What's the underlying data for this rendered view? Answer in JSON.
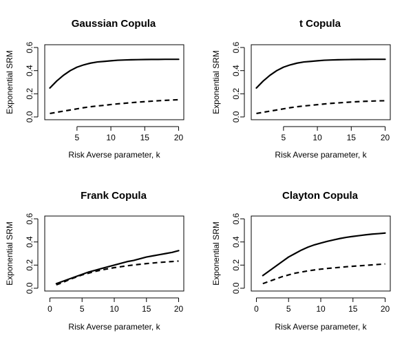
{
  "chart_data": [
    {
      "type": "line",
      "title": "Gaussian Copula",
      "xlabel": "Risk Averse parameter, k",
      "ylabel": "Exponential SRM",
      "xlim": [
        1,
        20
      ],
      "ylim": [
        0,
        0.6
      ],
      "xticks": [
        5,
        10,
        15,
        20
      ],
      "yticks": [
        0.0,
        0.2,
        0.4,
        0.6
      ],
      "ytick_labels": [
        "0.0",
        "0.2",
        "0.4",
        "0.6"
      ],
      "x": [
        1,
        2,
        3,
        4,
        5,
        6,
        7,
        8,
        9,
        10,
        11,
        12,
        13,
        14,
        15,
        16,
        17,
        18,
        19,
        20
      ],
      "series": [
        {
          "style": "solid",
          "values": [
            0.25,
            0.31,
            0.36,
            0.4,
            0.43,
            0.45,
            0.465,
            0.475,
            0.48,
            0.485,
            0.49,
            0.492,
            0.494,
            0.495,
            0.496,
            0.497,
            0.497,
            0.498,
            0.498,
            0.498
          ]
        },
        {
          "style": "dashed",
          "values": [
            0.03,
            0.04,
            0.05,
            0.06,
            0.07,
            0.08,
            0.088,
            0.095,
            0.1,
            0.107,
            0.113,
            0.118,
            0.123,
            0.128,
            0.132,
            0.136,
            0.14,
            0.143,
            0.146,
            0.149
          ]
        }
      ]
    },
    {
      "type": "line",
      "title": "t Copula",
      "xlabel": "Risk Averse parameter, k",
      "ylabel": "Exponential SRM",
      "xlim": [
        1,
        20
      ],
      "ylim": [
        0,
        0.6
      ],
      "xticks": [
        5,
        10,
        15,
        20
      ],
      "yticks": [
        0.0,
        0.2,
        0.4,
        0.6
      ],
      "ytick_labels": [
        "0.0",
        "0.2",
        "0.4",
        "0.6"
      ],
      "x": [
        1,
        2,
        3,
        4,
        5,
        6,
        7,
        8,
        9,
        10,
        11,
        12,
        13,
        14,
        15,
        16,
        17,
        18,
        19,
        20
      ],
      "series": [
        {
          "style": "solid",
          "values": [
            0.25,
            0.31,
            0.36,
            0.4,
            0.43,
            0.45,
            0.465,
            0.475,
            0.48,
            0.485,
            0.49,
            0.492,
            0.494,
            0.495,
            0.496,
            0.497,
            0.497,
            0.498,
            0.498,
            0.498
          ]
        },
        {
          "style": "dashed",
          "values": [
            0.03,
            0.04,
            0.05,
            0.06,
            0.07,
            0.08,
            0.088,
            0.095,
            0.1,
            0.106,
            0.112,
            0.117,
            0.121,
            0.125,
            0.129,
            0.132,
            0.135,
            0.137,
            0.139,
            0.14
          ]
        }
      ]
    },
    {
      "type": "line",
      "title": "Frank Copula",
      "xlabel": "Risk Averse parameter, k",
      "ylabel": "Exponential SRM",
      "xlim": [
        0,
        20
      ],
      "ylim": [
        0,
        0.6
      ],
      "xticks": [
        0,
        5,
        10,
        15,
        20
      ],
      "yticks": [
        0.0,
        0.2,
        0.4,
        0.6
      ],
      "ytick_labels": [
        "0.0",
        "0.2",
        "0.4",
        "0.6"
      ],
      "x": [
        1,
        2,
        3,
        4,
        5,
        6,
        7,
        8,
        9,
        10,
        11,
        12,
        13,
        14,
        15,
        16,
        17,
        18,
        19,
        20
      ],
      "series": [
        {
          "style": "solid",
          "values": [
            0.04,
            0.06,
            0.08,
            0.1,
            0.12,
            0.14,
            0.155,
            0.17,
            0.185,
            0.2,
            0.215,
            0.23,
            0.24,
            0.255,
            0.27,
            0.28,
            0.29,
            0.3,
            0.31,
            0.325
          ]
        },
        {
          "style": "dashed",
          "values": [
            0.03,
            0.05,
            0.075,
            0.095,
            0.115,
            0.13,
            0.145,
            0.157,
            0.168,
            0.178,
            0.186,
            0.194,
            0.201,
            0.207,
            0.213,
            0.218,
            0.223,
            0.227,
            0.231,
            0.235
          ]
        }
      ]
    },
    {
      "type": "line",
      "title": "Clayton Copula",
      "xlabel": "Risk Averse parameter, k",
      "ylabel": "Exponential SRM",
      "xlim": [
        0,
        20
      ],
      "ylim": [
        0,
        0.6
      ],
      "xticks": [
        0,
        5,
        10,
        15,
        20
      ],
      "yticks": [
        0.0,
        0.2,
        0.4,
        0.6
      ],
      "ytick_labels": [
        "0.0",
        "0.2",
        "0.4",
        "0.6"
      ],
      "x": [
        1,
        2,
        3,
        4,
        5,
        6,
        7,
        8,
        9,
        10,
        11,
        12,
        13,
        14,
        15,
        16,
        17,
        18,
        19,
        20
      ],
      "series": [
        {
          "style": "solid",
          "values": [
            0.11,
            0.15,
            0.19,
            0.23,
            0.27,
            0.3,
            0.33,
            0.355,
            0.375,
            0.39,
            0.405,
            0.418,
            0.43,
            0.44,
            0.448,
            0.455,
            0.462,
            0.468,
            0.472,
            0.477
          ]
        },
        {
          "style": "dashed",
          "values": [
            0.04,
            0.06,
            0.08,
            0.1,
            0.115,
            0.13,
            0.14,
            0.15,
            0.158,
            0.165,
            0.171,
            0.176,
            0.181,
            0.186,
            0.19,
            0.194,
            0.198,
            0.202,
            0.206,
            0.21
          ]
        }
      ]
    }
  ]
}
